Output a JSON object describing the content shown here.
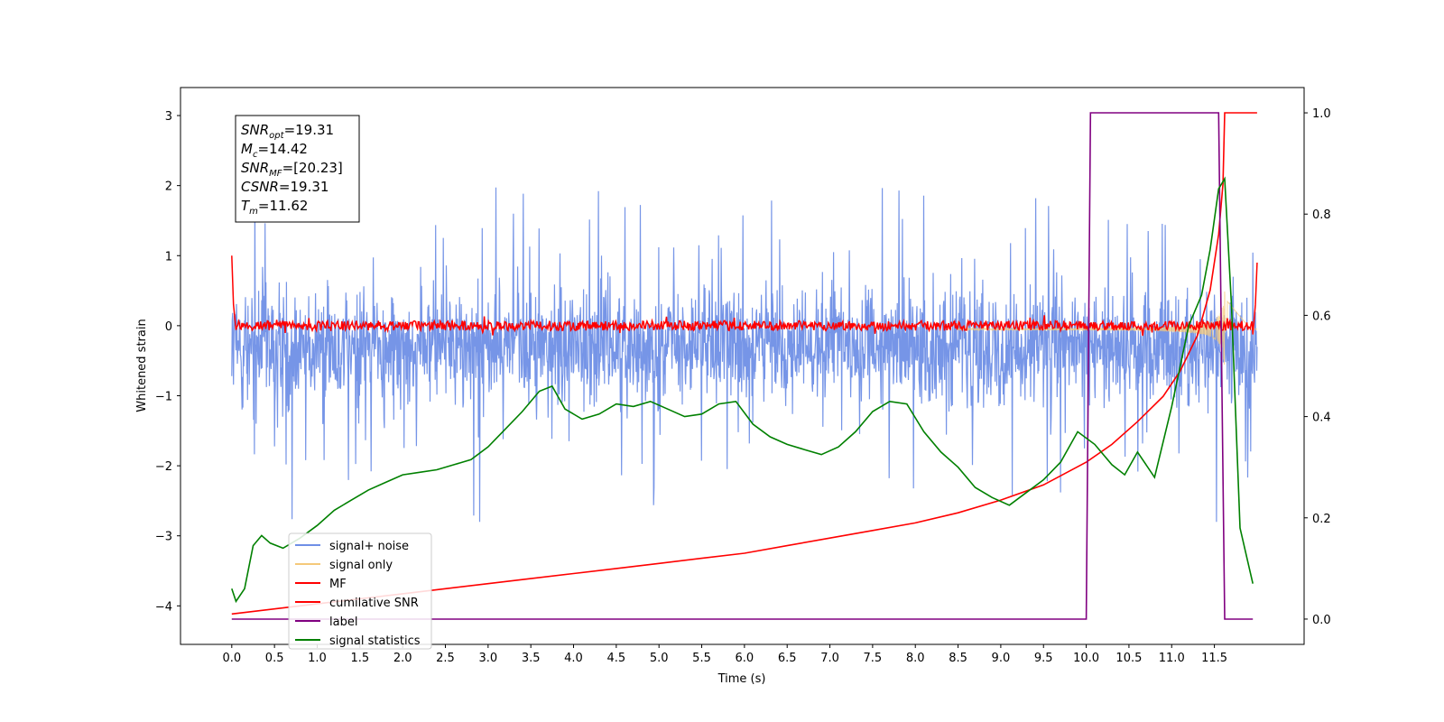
{
  "chart_data": {
    "type": "line",
    "xlabel": "Time (s)",
    "ylabel": "Whitened strain",
    "ylabel_right": "",
    "xlim": [
      -0.6,
      12.55
    ],
    "ylim": [
      -4.55,
      3.4
    ],
    "ylim_right": [
      -0.05,
      1.05
    ],
    "x_ticks": [
      "0.0",
      "0.5",
      "1.0",
      "1.5",
      "2.0",
      "2.5",
      "3.0",
      "3.5",
      "4.0",
      "4.5",
      "5.0",
      "5.5",
      "6.0",
      "6.5",
      "7.0",
      "7.5",
      "8.0",
      "8.5",
      "9.0",
      "9.5",
      "10.0",
      "10.5",
      "11.0",
      "11.5"
    ],
    "y_ticks": [
      "3",
      "2",
      "1",
      "0",
      "−1",
      "−2",
      "−3",
      "−4"
    ],
    "y_ticks_right": [
      "1.0",
      "0.8",
      "0.6",
      "0.4",
      "0.2",
      "0.0"
    ],
    "grid": false,
    "legend_position": "lower-left",
    "annotation": [
      {
        "base": "SNR",
        "sub": "opt",
        "value": "=19.31"
      },
      {
        "base": "M",
        "sub": "c",
        "value": "=14.42"
      },
      {
        "base": "SNR",
        "sub": "MF",
        "value": "=[20.23]"
      },
      {
        "base": "CSNR",
        "sub": "",
        "value": "=19.31"
      },
      {
        "base": "T",
        "sub": "m",
        "value": "=11.62"
      }
    ],
    "series": [
      {
        "name": "signal+ noise",
        "color": "#6f8fe6",
        "axis": "left",
        "description_range": [
          -2.8,
          3.05
        ],
        "x_range": [
          0.0,
          12.0
        ]
      },
      {
        "name": "signal only",
        "color": "#f5c97a",
        "axis": "left",
        "x_range": [
          0.0,
          12.0
        ]
      },
      {
        "name": "MF",
        "color": "#ff0000",
        "axis": "left",
        "x": [
          0.0,
          0.02,
          0.05,
          11.95,
          11.98,
          12.0
        ],
        "y": [
          1.0,
          0.3,
          0.0,
          0.0,
          0.3,
          0.9
        ]
      },
      {
        "name": "cumilative SNR",
        "color": "#ff0000",
        "axis": "right",
        "x": [
          0.0,
          0.5,
          1.0,
          1.5,
          2.0,
          2.5,
          3.0,
          3.5,
          4.0,
          4.5,
          5.0,
          5.5,
          6.0,
          6.5,
          7.0,
          7.5,
          8.0,
          8.5,
          9.0,
          9.5,
          10.0,
          10.3,
          10.6,
          10.9,
          11.1,
          11.3,
          11.45,
          11.55,
          11.6,
          11.62,
          12.0
        ],
        "y": [
          0.01,
          0.02,
          0.03,
          0.04,
          0.05,
          0.06,
          0.07,
          0.08,
          0.09,
          0.1,
          0.11,
          0.12,
          0.13,
          0.145,
          0.16,
          0.175,
          0.19,
          0.21,
          0.235,
          0.265,
          0.31,
          0.345,
          0.39,
          0.44,
          0.49,
          0.56,
          0.65,
          0.76,
          0.86,
          1.0,
          1.0
        ]
      },
      {
        "name": "label",
        "color": "#800080",
        "axis": "right",
        "x": [
          0.0,
          10.0,
          10.05,
          11.55,
          11.62,
          11.95
        ],
        "y": [
          0.0,
          0.0,
          1.0,
          1.0,
          0.0,
          0.0
        ]
      },
      {
        "name": "signal statistics",
        "color": "#008000",
        "axis": "right",
        "x": [
          0.0,
          0.05,
          0.15,
          0.25,
          0.35,
          0.45,
          0.6,
          0.8,
          1.0,
          1.2,
          1.4,
          1.6,
          1.8,
          2.0,
          2.2,
          2.4,
          2.6,
          2.8,
          3.0,
          3.2,
          3.4,
          3.6,
          3.75,
          3.9,
          4.1,
          4.3,
          4.5,
          4.7,
          4.9,
          5.1,
          5.3,
          5.5,
          5.7,
          5.9,
          6.1,
          6.3,
          6.5,
          6.7,
          6.9,
          7.1,
          7.3,
          7.5,
          7.7,
          7.9,
          8.1,
          8.3,
          8.5,
          8.7,
          8.9,
          9.1,
          9.3,
          9.5,
          9.7,
          9.9,
          10.1,
          10.3,
          10.45,
          10.6,
          10.8,
          11.0,
          11.2,
          11.35,
          11.45,
          11.55,
          11.62,
          11.7,
          11.8,
          11.95
        ],
        "y": [
          0.06,
          0.035,
          0.06,
          0.145,
          0.165,
          0.15,
          0.14,
          0.16,
          0.185,
          0.215,
          0.235,
          0.255,
          0.27,
          0.285,
          0.29,
          0.295,
          0.305,
          0.315,
          0.34,
          0.375,
          0.41,
          0.45,
          0.46,
          0.415,
          0.395,
          0.405,
          0.425,
          0.42,
          0.43,
          0.415,
          0.4,
          0.405,
          0.425,
          0.43,
          0.385,
          0.36,
          0.345,
          0.335,
          0.325,
          0.34,
          0.37,
          0.41,
          0.43,
          0.425,
          0.37,
          0.33,
          0.3,
          0.26,
          0.24,
          0.225,
          0.25,
          0.275,
          0.31,
          0.37,
          0.345,
          0.305,
          0.285,
          0.33,
          0.28,
          0.42,
          0.58,
          0.64,
          0.73,
          0.85,
          0.87,
          0.62,
          0.18,
          0.07
        ]
      }
    ]
  }
}
